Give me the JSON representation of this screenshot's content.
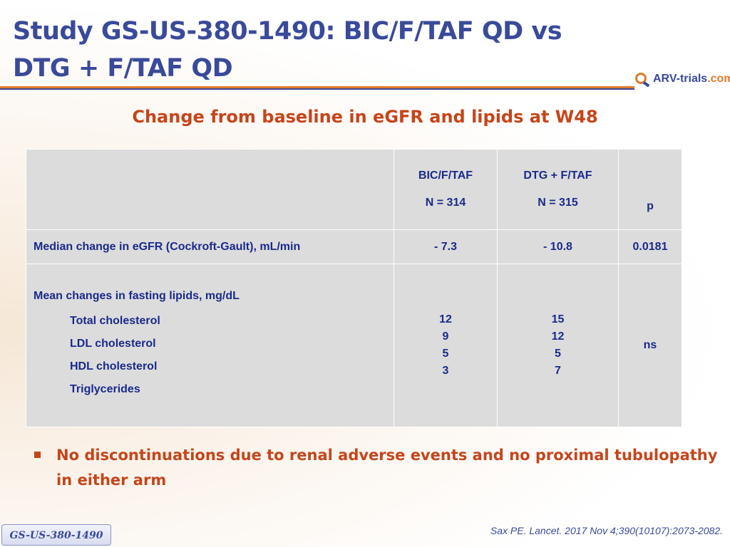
{
  "slide": {
    "title_line1": "Study GS-US-380-1490: BIC/F/TAF QD vs",
    "title_line2": "DTG + F/TAF QD",
    "subtitle": "Change from baseline in eGFR and lipids at W48",
    "logo": {
      "prefix": "ARV-",
      "middle": "trials",
      "suffix": ".com",
      "icon": "magnifier-logo-icon"
    },
    "colors": {
      "title": "#3a4a9a",
      "accent": "#c5451a",
      "bic_header": "#4dbe7e",
      "dtg_header": "#5b8fd0"
    }
  },
  "table": {
    "headers": {
      "bic_name": "BIC/F/TAF",
      "bic_n": "N = 314",
      "dtg_name": "DTG + F/TAF",
      "dtg_n": "N = 315",
      "p": "p"
    },
    "egfr": {
      "label": "Median change in eGFR (Cockroft-Gault), mL/min",
      "bic": "- 7.3",
      "dtg": "- 10.8",
      "p": "0.0181"
    },
    "lipids": {
      "label": "Mean changes in fasting lipids, mg/dL",
      "items": [
        "Total cholesterol",
        "LDL cholesterol",
        "HDL cholesterol",
        "Triglycerides"
      ],
      "bic": [
        "12",
        "9",
        "5",
        "3"
      ],
      "dtg": [
        "15",
        "12",
        "5",
        "7"
      ],
      "p": "ns"
    }
  },
  "bullet": "No discontinuations due to renal adverse events and no proximal tubulopathy in either arm",
  "citation": "Sax PE. Lancet. 2017 Nov 4;390(10107):2073-2082.",
  "badge": "GS-US-380-1490"
}
